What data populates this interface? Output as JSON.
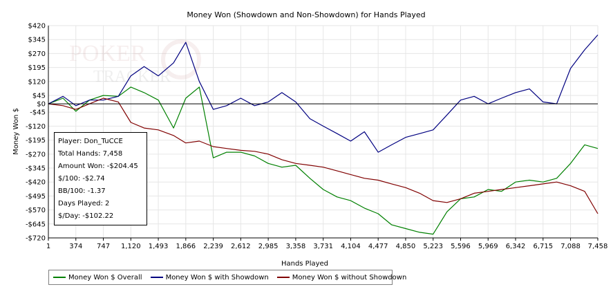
{
  "chart_data": {
    "type": "line",
    "title": "Money Won (Showdown and Non-Showdown) for Hands Played",
    "xlabel": "Hands Played",
    "ylabel": "Money Won $",
    "xlim": [
      1,
      7458
    ],
    "ylim": [
      -720,
      420
    ],
    "x_ticks": [
      1,
      374,
      747,
      1120,
      1493,
      1866,
      2239,
      2612,
      2985,
      3358,
      3731,
      4104,
      4477,
      4850,
      5223,
      5596,
      5969,
      6342,
      6715,
      7088,
      7458
    ],
    "x_tick_labels": [
      "1",
      "374",
      "747",
      "1,120",
      "1,493",
      "1,866",
      "2,239",
      "2,612",
      "2,985",
      "3,358",
      "3,731",
      "4,104",
      "4,477",
      "4,850",
      "5,223",
      "5,596",
      "5,969",
      "6,342",
      "6,715",
      "7,088",
      "7,458"
    ],
    "y_ticks": [
      420,
      345,
      270,
      195,
      120,
      45,
      0,
      -45,
      -120,
      -195,
      -270,
      -345,
      -420,
      -495,
      -570,
      -645,
      -720
    ],
    "y_tick_labels": [
      "$420",
      "$345",
      "$270",
      "$195",
      "$120",
      "$45",
      "$0",
      "-$45",
      "-$120",
      "-$195",
      "-$270",
      "-$345",
      "-$420",
      "-$495",
      "-$570",
      "-$645",
      "-$720"
    ],
    "grid": true,
    "legend_position": "bottom-left",
    "series": [
      {
        "name": "Money Won $ Overall",
        "color": "#008000",
        "x": [
          1,
          200,
          374,
          560,
          747,
          950,
          1120,
          1300,
          1493,
          1700,
          1866,
          2050,
          2239,
          2420,
          2612,
          2800,
          2985,
          3170,
          3358,
          3550,
          3731,
          3920,
          4104,
          4290,
          4477,
          4660,
          4850,
          5040,
          5223,
          5410,
          5596,
          5780,
          5969,
          6150,
          6342,
          6530,
          6715,
          6900,
          7088,
          7280,
          7458
        ],
        "y": [
          0,
          30,
          -40,
          20,
          45,
          40,
          90,
          60,
          20,
          -130,
          30,
          90,
          -290,
          -260,
          -260,
          -280,
          -320,
          -340,
          -330,
          -400,
          -460,
          -500,
          -520,
          -560,
          -590,
          -650,
          -670,
          -690,
          -700,
          -580,
          -510,
          -500,
          -460,
          -470,
          -420,
          -410,
          -420,
          -400,
          -320,
          -220,
          -240
        ]
      },
      {
        "name": "Money Won $ with Showdown",
        "color": "#000080",
        "x": [
          1,
          200,
          374,
          560,
          747,
          950,
          1120,
          1300,
          1493,
          1700,
          1866,
          2050,
          2239,
          2420,
          2612,
          2800,
          2985,
          3170,
          3358,
          3550,
          3731,
          3920,
          4104,
          4290,
          4477,
          4660,
          4850,
          5040,
          5223,
          5410,
          5596,
          5780,
          5969,
          6150,
          6342,
          6530,
          6715,
          6900,
          7088,
          7280,
          7458
        ],
        "y": [
          0,
          40,
          -10,
          20,
          20,
          40,
          150,
          200,
          150,
          220,
          330,
          120,
          -30,
          -10,
          30,
          -10,
          10,
          60,
          10,
          -80,
          -120,
          -160,
          -200,
          -150,
          -260,
          -220,
          -180,
          -160,
          -140,
          -60,
          20,
          40,
          0,
          30,
          60,
          80,
          10,
          0,
          190,
          290,
          370
        ]
      },
      {
        "name": "Money Won $ without Showdown",
        "color": "#800000",
        "x": [
          1,
          200,
          374,
          560,
          747,
          950,
          1120,
          1300,
          1493,
          1700,
          1866,
          2050,
          2239,
          2420,
          2612,
          2800,
          2985,
          3170,
          3358,
          3550,
          3731,
          3920,
          4104,
          4290,
          4477,
          4660,
          4850,
          5040,
          5223,
          5410,
          5596,
          5780,
          5969,
          6150,
          6342,
          6530,
          6715,
          6900,
          7088,
          7280,
          7458
        ],
        "y": [
          0,
          -10,
          -30,
          0,
          30,
          10,
          -100,
          -130,
          -140,
          -170,
          -210,
          -200,
          -230,
          -240,
          -250,
          -255,
          -270,
          -300,
          -320,
          -330,
          -340,
          -360,
          -380,
          -400,
          -410,
          -430,
          -450,
          -480,
          -520,
          -530,
          -510,
          -480,
          -470,
          -460,
          -450,
          -440,
          -430,
          -420,
          -440,
          -470,
          -590
        ]
      }
    ]
  },
  "stats": {
    "player": "Player: Don_TuCCE",
    "total_hands": "Total Hands: 7,458",
    "amount_won": "Amount Won: -$204.45",
    "per_100": "$/100: -$2.74",
    "bb_100": "BB/100: -1.37",
    "days_played": "Days Played: 2",
    "per_day": "$/Day: -$102.22"
  },
  "watermark": {
    "line1": "POKER",
    "line2": "TRACKER"
  }
}
